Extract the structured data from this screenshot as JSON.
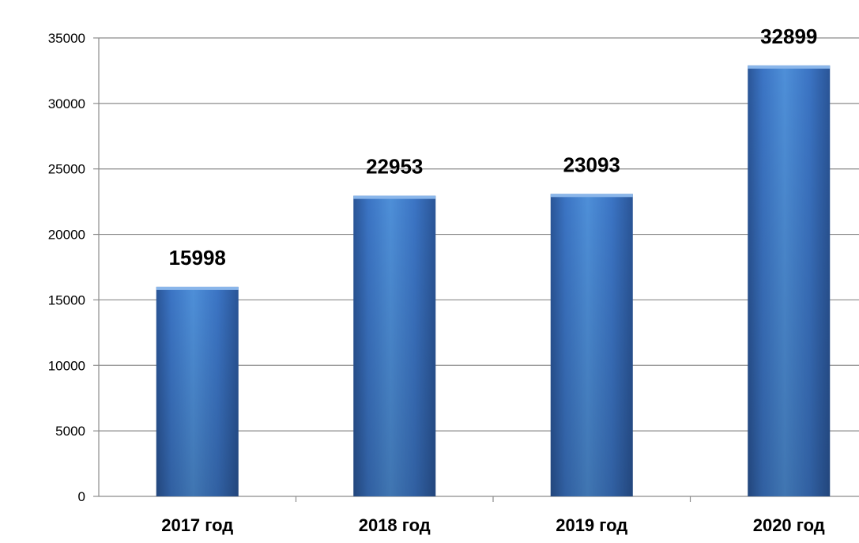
{
  "chart_data": {
    "type": "bar",
    "categories": [
      "2017 год",
      "2018 год",
      "2019 год",
      "2020 год"
    ],
    "values": [
      15998,
      22953,
      23093,
      32899
    ],
    "data_labels": [
      "15998",
      "22953",
      "23093",
      "32899"
    ],
    "ylim": [
      0,
      35000
    ],
    "yticks": [
      0,
      5000,
      10000,
      15000,
      20000,
      25000,
      30000,
      35000
    ],
    "ytick_labels": [
      "0",
      "5000",
      "10000",
      "15000",
      "20000",
      "25000",
      "30000",
      "35000"
    ],
    "title": "",
    "xlabel": "",
    "ylabel": "",
    "grid": true,
    "legend": "none",
    "colors": {
      "bar_light": "#4e8fd8",
      "bar_mid": "#3b74c4",
      "bar_dark": "#2a5597",
      "bar_top": "#8ab6ea",
      "grid": "#8c8c8c",
      "axis": "#8c8c8c"
    }
  }
}
